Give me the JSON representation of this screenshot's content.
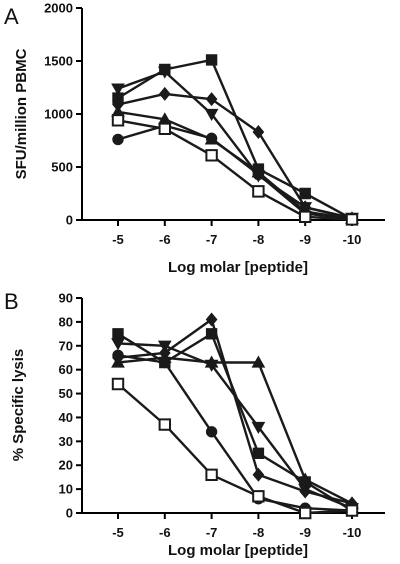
{
  "chart_data": [
    {
      "panel_label": "A",
      "type": "line",
      "xlabel": "Log molar [peptide]",
      "ylabel": "SFU/million PBMC",
      "x": [
        -5,
        -6,
        -7,
        -8,
        -9,
        -10
      ],
      "x_tick_labels": [
        "-5",
        "-6",
        "-7",
        "-8",
        "-9",
        "-10"
      ],
      "ylim": [
        0,
        2000
      ],
      "y_ticks": [
        0,
        500,
        1000,
        1500,
        2000
      ],
      "y_tick_labels": [
        "0",
        "500",
        "1000",
        "1500",
        "2000"
      ],
      "grid": false,
      "series": [
        {
          "marker": "filled-square",
          "values": [
            1150,
            1420,
            1510,
            480,
            250,
            10
          ]
        },
        {
          "marker": "filled-down-triangle",
          "values": [
            1240,
            1400,
            1000,
            420,
            120,
            20
          ]
        },
        {
          "marker": "filled-diamond",
          "values": [
            1090,
            1190,
            1140,
            830,
            120,
            15
          ]
        },
        {
          "marker": "filled-up-triangle",
          "values": [
            1020,
            950,
            760,
            450,
            80,
            10
          ]
        },
        {
          "marker": "filled-circle",
          "values": [
            760,
            890,
            770,
            430,
            60,
            10
          ]
        },
        {
          "marker": "open-square",
          "values": [
            940,
            860,
            610,
            270,
            30,
            5
          ]
        }
      ]
    },
    {
      "panel_label": "B",
      "type": "line",
      "xlabel": "Log molar [peptide]",
      "ylabel": "% Specific lysis",
      "x": [
        -5,
        -6,
        -7,
        -8,
        -9,
        -10
      ],
      "x_tick_labels": [
        "-5",
        "-6",
        "-7",
        "-8",
        "-9",
        "-10"
      ],
      "ylim": [
        0,
        90
      ],
      "y_ticks": [
        0,
        10,
        20,
        30,
        40,
        50,
        60,
        70,
        80,
        90
      ],
      "y_tick_labels": [
        "0",
        "10",
        "20",
        "30",
        "40",
        "50",
        "60",
        "70",
        "80",
        "90"
      ],
      "grid": false,
      "series": [
        {
          "marker": "filled-square",
          "values": [
            75,
            63,
            75,
            25,
            13,
            1
          ]
        },
        {
          "marker": "filled-down-triangle",
          "values": [
            71,
            70,
            62,
            36,
            10,
            2
          ]
        },
        {
          "marker": "filled-diamond",
          "values": [
            65,
            67,
            81,
            16,
            9,
            4
          ]
        },
        {
          "marker": "filled-up-triangle",
          "values": [
            63,
            65,
            63,
            63,
            14,
            4
          ]
        },
        {
          "marker": "filled-circle",
          "values": [
            66,
            63,
            34,
            6,
            2,
            1
          ]
        },
        {
          "marker": "open-square",
          "values": [
            54,
            37,
            16,
            7,
            0,
            1
          ]
        }
      ]
    }
  ]
}
